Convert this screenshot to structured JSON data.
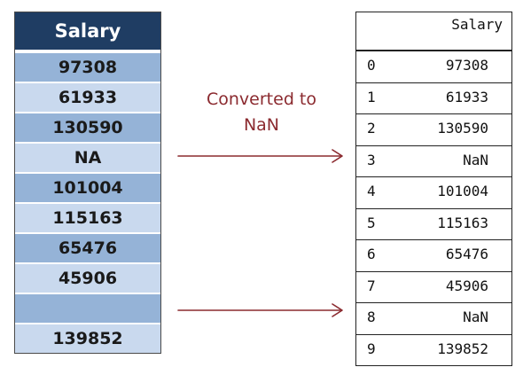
{
  "source": {
    "header": "Salary",
    "rows": [
      "97308",
      "61933",
      "130590",
      "NA",
      "101004",
      "115163",
      "65476",
      "45906",
      "",
      "139852"
    ]
  },
  "annotation": {
    "line1": "Converted to",
    "line2": "NaN"
  },
  "result": {
    "column": "Salary",
    "index": [
      "0",
      "1",
      "2",
      "3",
      "4",
      "5",
      "6",
      "7",
      "8",
      "9"
    ],
    "values": [
      "97308",
      "61933",
      "130590",
      "NaN",
      "101004",
      "115163",
      "65476",
      "45906",
      "NaN",
      "139852"
    ]
  },
  "colors": {
    "header_bg": "#1f3d63",
    "row_dark": "#95b3d7",
    "row_light": "#c9d9ee",
    "arrow": "#8b2a2f"
  }
}
